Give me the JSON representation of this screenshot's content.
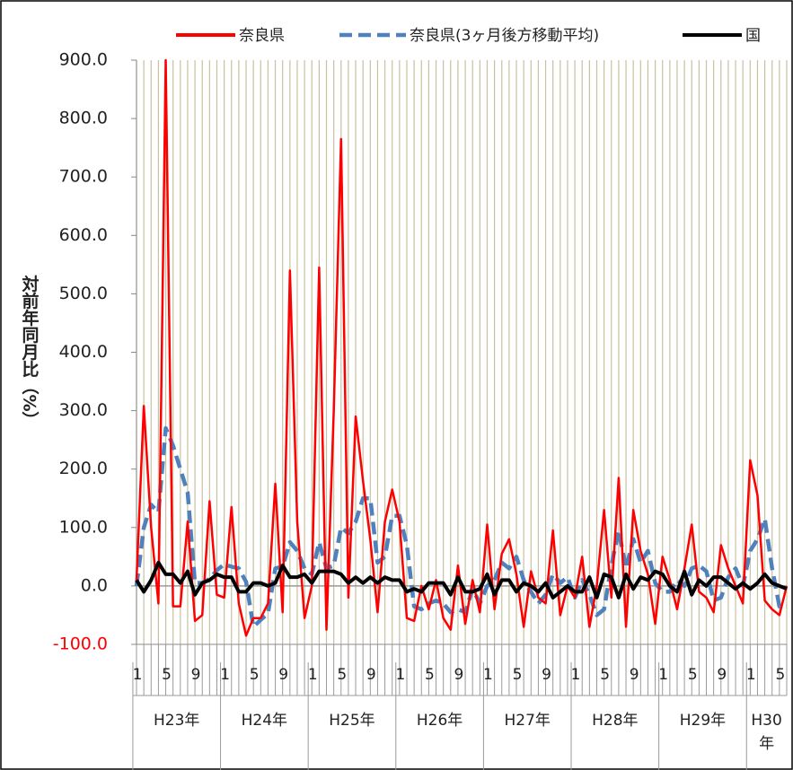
{
  "chart_data": {
    "type": "line",
    "y_label": "対前年同月比（%）",
    "categories": [
      "1",
      null,
      null,
      null,
      "5",
      null,
      null,
      null,
      "9",
      null,
      null,
      null,
      "1",
      null,
      null,
      null,
      "5",
      null,
      null,
      null,
      "9",
      null,
      null,
      null,
      "1",
      null,
      null,
      null,
      "5",
      null,
      null,
      null,
      "9",
      null,
      null,
      null,
      "1",
      null,
      null,
      null,
      "5",
      null,
      null,
      null,
      "9",
      null,
      null,
      null,
      "1",
      null,
      null,
      null,
      "5",
      null,
      null,
      null,
      "9",
      null,
      null,
      null,
      "1",
      null,
      null,
      null,
      "5",
      null,
      null,
      null,
      "9",
      null,
      null,
      null,
      "1",
      null,
      null,
      null,
      "5",
      null,
      null,
      null,
      "9",
      null,
      null,
      null,
      "1",
      null,
      null,
      null,
      "5",
      null
    ],
    "year_labels": [
      "H23年",
      "H24年",
      "H25年",
      "H26年",
      "H27年",
      "H28年",
      "H29年",
      "H30年"
    ],
    "series": [
      {
        "name": "奈良県",
        "color": "#ff0000",
        "dash": false,
        "values": [
          10,
          308,
          100,
          -30,
          900,
          -35,
          -35,
          110,
          -60,
          -50,
          145,
          -15,
          -20,
          135,
          -30,
          -85,
          -55,
          -55,
          -30,
          175,
          -45,
          540,
          110,
          -55,
          0,
          545,
          -75,
          300,
          765,
          -20,
          290,
          180,
          80,
          -45,
          110,
          165,
          110,
          -55,
          -60,
          0,
          -40,
          10,
          -55,
          -75,
          35,
          -65,
          10,
          -45,
          105,
          -40,
          55,
          80,
          20,
          -70,
          25,
          -20,
          -30,
          95,
          -50,
          0,
          -20,
          50,
          -70,
          0,
          130,
          -20,
          185,
          -70,
          130,
          60,
          20,
          -65,
          50,
          10,
          -40,
          30,
          105,
          -10,
          -20,
          -45,
          70,
          30,
          0,
          -30,
          215,
          155,
          -25,
          -40,
          -50,
          0
        ]
      },
      {
        "name": "奈良県(3ヶ月後方移動平均)",
        "color": "#4f81bd",
        "dash": true,
        "values": [
          0,
          100,
          139,
          126,
          270,
          240,
          200,
          160,
          5,
          5,
          12,
          27,
          37,
          33,
          30,
          7,
          -70,
          -58,
          -47,
          30,
          33,
          75,
          60,
          30,
          20,
          75,
          30,
          35,
          100,
          90,
          110,
          150,
          150,
          40,
          50,
          120,
          120,
          70,
          -35,
          -40,
          -30,
          -25,
          -30,
          -45,
          -40,
          -45,
          -5,
          -30,
          0,
          10,
          40,
          30,
          50,
          10,
          -10,
          -30,
          -15,
          20,
          5,
          15,
          -20,
          10,
          -15,
          -50,
          -40,
          35,
          95,
          30,
          80,
          40,
          60,
          5,
          -10,
          -10,
          10,
          0,
          30,
          35,
          25,
          -25,
          -20,
          15,
          30,
          0,
          60,
          80,
          115,
          30,
          -35,
          -35
        ]
      },
      {
        "name": "国",
        "color": "#000000",
        "dash": false,
        "values": [
          10,
          -10,
          10,
          40,
          20,
          20,
          5,
          25,
          -15,
          5,
          10,
          20,
          15,
          15,
          -10,
          -10,
          5,
          5,
          0,
          5,
          35,
          15,
          15,
          20,
          5,
          25,
          25,
          25,
          20,
          5,
          15,
          5,
          15,
          5,
          15,
          10,
          10,
          -10,
          -5,
          -10,
          5,
          5,
          5,
          -15,
          15,
          -10,
          -10,
          -5,
          20,
          -15,
          10,
          10,
          -10,
          5,
          0,
          -10,
          5,
          -20,
          -10,
          0,
          -10,
          -10,
          15,
          -20,
          20,
          15,
          -20,
          20,
          -5,
          15,
          10,
          25,
          20,
          0,
          -10,
          25,
          -15,
          10,
          0,
          15,
          15,
          5,
          -5,
          5,
          -5,
          5,
          20,
          5,
          0,
          -5
        ]
      }
    ],
    "ylim": [
      -100,
      900
    ],
    "yticks": [
      {
        "value": -100,
        "label": "-100.0"
      },
      {
        "value": 0,
        "label": "0.0"
      },
      {
        "value": 100,
        "label": "100.0"
      },
      {
        "value": 200,
        "label": "200.0"
      },
      {
        "value": 300,
        "label": "300.0"
      },
      {
        "value": 400,
        "label": "400.0"
      },
      {
        "value": 500,
        "label": "500.0"
      },
      {
        "value": 600,
        "label": "600.0"
      },
      {
        "value": 700,
        "label": "700.0"
      },
      {
        "value": 800,
        "label": "800.0"
      },
      {
        "value": 900,
        "label": "900.0"
      }
    ],
    "negative_tick_color": "#ff0000",
    "grid": true,
    "legend": "top"
  }
}
